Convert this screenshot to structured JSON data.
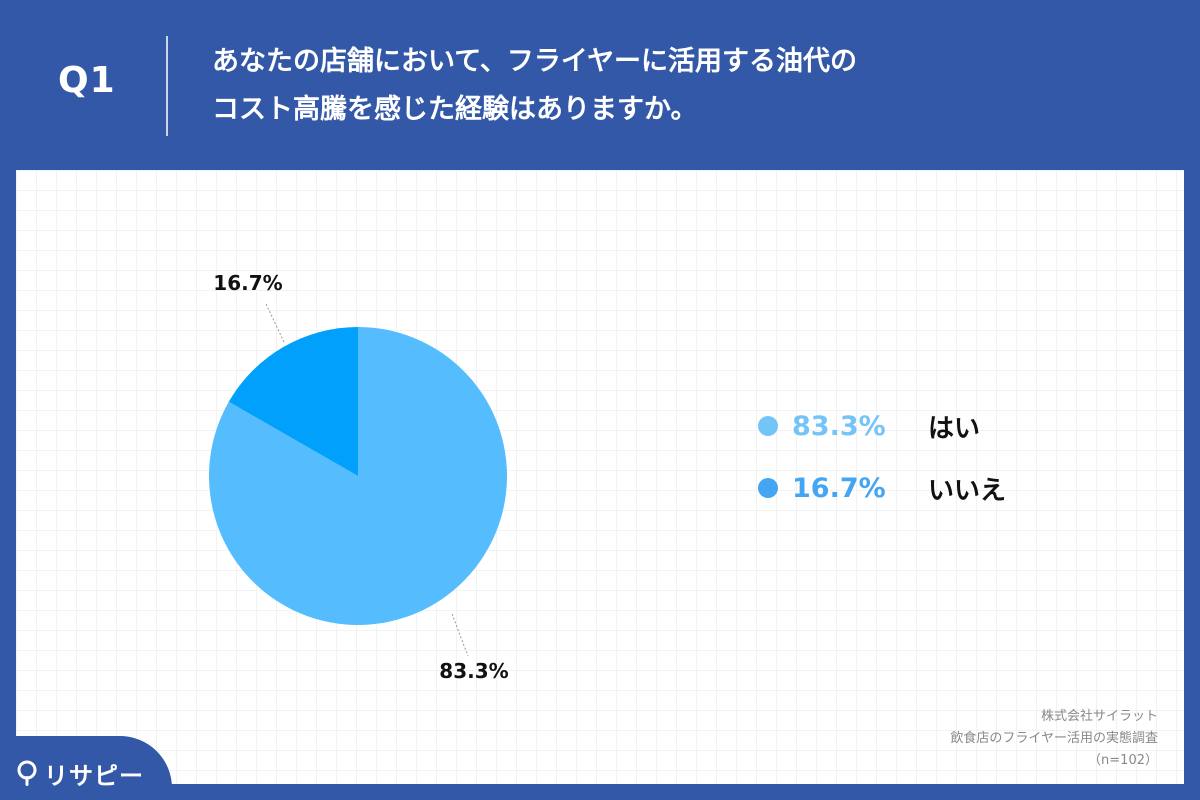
{
  "header": {
    "question_no": "Q1",
    "title_line1": "あなたの店舗において、フライヤーに活用する油代の",
    "title_line2": "コスト高騰を感じた経験はありますか。"
  },
  "chart_data": {
    "type": "pie",
    "slices": [
      {
        "label": "はい",
        "value": 83.3,
        "display": "83.3%",
        "color": "#55bdfd"
      },
      {
        "label": "いいえ",
        "value": 16.7,
        "display": "16.7%",
        "color": "#00a0fb"
      }
    ],
    "legend_placement": "right",
    "start_angle_deg": 0,
    "direction": "clockwise"
  },
  "legend": {
    "items": [
      {
        "pct": "83.3%",
        "text": "はい",
        "color": "#74c4f8"
      },
      {
        "pct": "16.7%",
        "text": "いいえ",
        "color": "#44a6f2"
      }
    ]
  },
  "source": {
    "line1": "株式会社サイラット",
    "line2": "飲食店のフライヤー活用の実態調査",
    "line3": "（n=102）"
  },
  "brand": {
    "name": "リサピー"
  },
  "colors": {
    "frame": "#3358a8",
    "panel": "#ffffff"
  }
}
